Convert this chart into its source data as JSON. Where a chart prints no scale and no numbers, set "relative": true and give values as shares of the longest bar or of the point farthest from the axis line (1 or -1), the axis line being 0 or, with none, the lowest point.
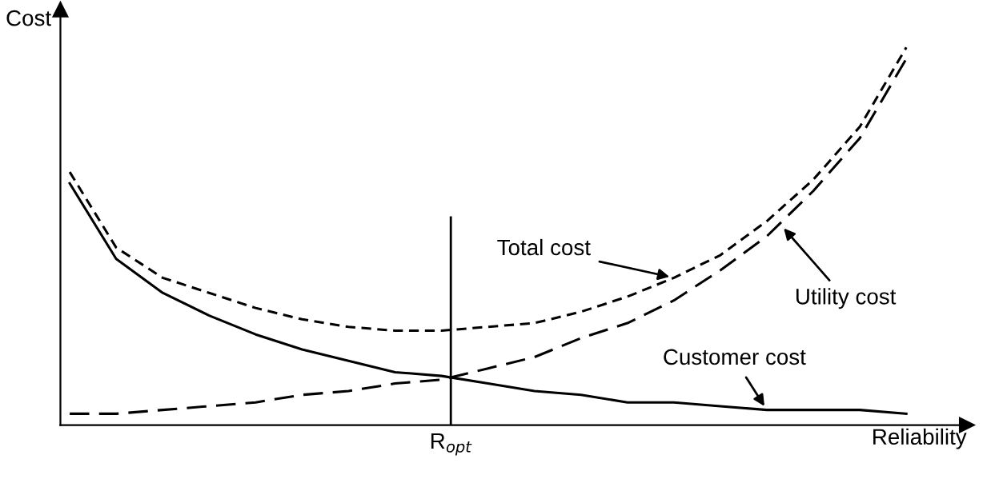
{
  "chart_data": {
    "type": "line",
    "relative": true,
    "xlabel": "Reliability",
    "ylabel": "Cost",
    "categories": [
      null,
      null,
      null,
      null,
      null,
      null,
      null,
      null,
      null,
      null,
      null,
      null,
      null,
      null,
      null,
      null,
      null,
      null,
      null
    ],
    "series": [
      {
        "color": "#000000",
        "line_style": "solid",
        "values": [
          0.64,
          0.44,
          0.35,
          0.29,
          0.24,
          0.2,
          0.17,
          0.14,
          0.13,
          0.11,
          0.09,
          0.08,
          0.06,
          0.06,
          0.05,
          0.04,
          0.04,
          0.04,
          0.03
        ]
      },
      {
        "color": "#000000",
        "line_style": "dashed",
        "values": [
          0.03,
          0.03,
          0.04,
          0.05,
          0.06,
          0.08,
          0.09,
          0.11,
          0.12,
          0.15,
          0.18,
          0.23,
          0.27,
          0.33,
          0.41,
          0.5,
          0.62,
          0.76,
          0.97
        ]
      },
      {
        "color": "#000000",
        "line_style": "dotted",
        "values": [
          0.67,
          0.47,
          0.39,
          0.35,
          0.31,
          0.28,
          0.26,
          0.25,
          0.25,
          0.26,
          0.27,
          0.3,
          0.34,
          0.39,
          0.45,
          0.54,
          0.65,
          0.79,
          1
        ]
      }
    ],
    "annotations": [
      "Total cost",
      "Utility cost",
      "Customer cost",
      "R$_{opt}$"
    ],
    "grid": false,
    "legend": false,
    "marker": "none"
  }
}
